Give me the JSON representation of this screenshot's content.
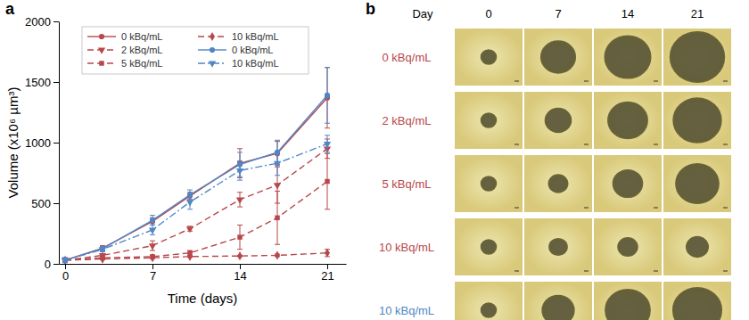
{
  "chart_data": {
    "type": "line",
    "panel_label": "a",
    "x_label": "Time (days)",
    "y_label": "Volume (x10⁶ µm³)",
    "x": [
      0,
      3,
      7,
      10,
      14,
      17,
      21
    ],
    "xlim": [
      -0.5,
      22.5
    ],
    "xticks": [
      0,
      7,
      14,
      21
    ],
    "ylim": [
      0,
      2000
    ],
    "yticks": [
      0,
      500,
      1000,
      1500,
      2000
    ],
    "grid": false,
    "legend": "upper left",
    "series": [
      {
        "name": "0 kBq/mL",
        "color": "#b8474a",
        "marker": "circle",
        "line_style": "solid",
        "values": [
          30,
          130,
          350,
          560,
          830,
          910,
          1370
        ],
        "errors": [
          20,
          20,
          30,
          30,
          120,
          100,
          250
        ]
      },
      {
        "name": "2 kBq/mL",
        "color": "#b8474a",
        "marker": "triangle-down",
        "line_style": "dashed",
        "values": [
          30,
          70,
          150,
          290,
          530,
          650,
          950
        ],
        "errors": [
          10,
          10,
          40,
          20,
          60,
          150,
          80
        ]
      },
      {
        "name": "5 kBq/mL",
        "color": "#b8474a",
        "marker": "square",
        "line_style": "dashed",
        "values": [
          30,
          50,
          60,
          90,
          220,
          380,
          680
        ],
        "errors": [
          5,
          5,
          10,
          20,
          100,
          220,
          230
        ]
      },
      {
        "name": "10 kBq/mL",
        "color": "#b8474a",
        "marker": "diamond",
        "line_style": "dashed",
        "values": [
          30,
          40,
          50,
          60,
          65,
          70,
          90
        ],
        "errors": [
          5,
          5,
          5,
          5,
          5,
          10,
          30
        ]
      },
      {
        "name": "0 kBq/mL",
        "color": "#4f86c6",
        "marker": "circle",
        "line_style": "solid",
        "values": [
          30,
          125,
          360,
          570,
          820,
          920,
          1390
        ],
        "errors": [
          20,
          20,
          40,
          40,
          100,
          100,
          230
        ]
      },
      {
        "name": "10 kBq/mL",
        "color": "#4f86c6",
        "marker": "triangle-down",
        "line_style": "dashdot",
        "values": [
          30,
          120,
          280,
          510,
          770,
          830,
          990
        ],
        "errors": [
          20,
          20,
          40,
          60,
          80,
          100,
          70
        ]
      }
    ]
  },
  "image_grid": {
    "panel_label": "b",
    "header": "Day",
    "columns": [
      "0",
      "7",
      "14",
      "21"
    ],
    "rows": [
      {
        "label": "0 kBq/mL",
        "color": "#b8474a"
      },
      {
        "label": "2 kBq/mL",
        "color": "#b8474a"
      },
      {
        "label": "5 kBq/mL",
        "color": "#b8474a"
      },
      {
        "label": "10 kBq/mL",
        "color": "#b8474a"
      },
      {
        "label": "10 kBq/mL",
        "color": "#4f86c6"
      }
    ]
  }
}
